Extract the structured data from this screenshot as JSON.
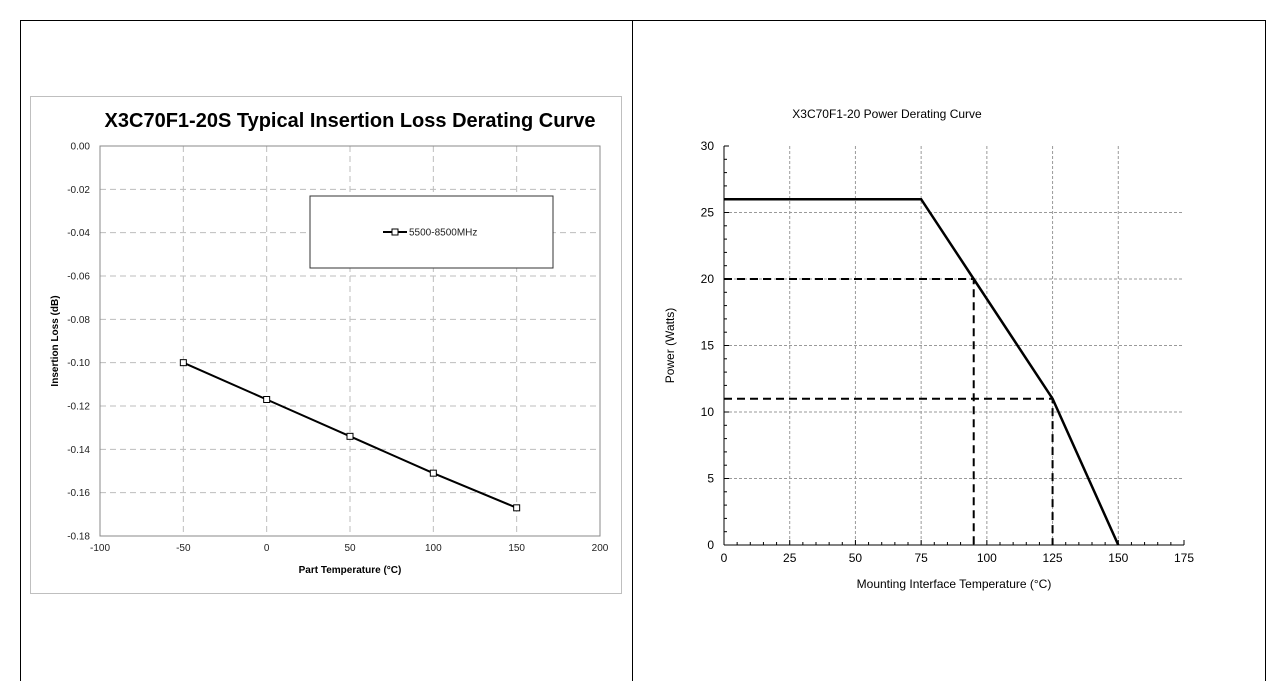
{
  "chart_data": [
    {
      "type": "line",
      "title": "X3C70F1-20S Typical Insertion Loss Derating Curve",
      "xlabel": "Part Temperature (°C)",
      "ylabel": "Insertion Loss (dB)",
      "xlim": [
        -100,
        200
      ],
      "ylim": [
        -0.18,
        0.0
      ],
      "xticks": [
        "-100",
        "-50",
        "0",
        "50",
        "100",
        "150",
        "200"
      ],
      "yticks": [
        "0.00",
        "-0.02",
        "-0.04",
        "-0.06",
        "-0.08",
        "-0.10",
        "-0.12",
        "-0.14",
        "-0.16",
        "-0.18"
      ],
      "grid": true,
      "legend_position": "top-right",
      "series": [
        {
          "name": "5500-8500MHz",
          "x": [
            -50,
            0,
            50,
            100,
            150
          ],
          "y": [
            -0.1,
            -0.117,
            -0.134,
            -0.151,
            -0.167
          ],
          "color": "#000000",
          "marker": "square"
        }
      ]
    },
    {
      "type": "line",
      "title": "X3C70F1-20 Power Derating Curve",
      "xlabel": "Mounting Interface Temperature (°C)",
      "ylabel": "Power (Watts)",
      "xlim": [
        0,
        175
      ],
      "ylim": [
        0,
        30
      ],
      "xticks": [
        "0",
        "25",
        "50",
        "75",
        "100",
        "125",
        "150",
        "175"
      ],
      "yticks": [
        "0",
        "5",
        "10",
        "15",
        "20",
        "25",
        "30"
      ],
      "grid": true,
      "series": [
        {
          "x": [
            0,
            75,
            95,
            125,
            150
          ],
          "y": [
            26,
            26,
            20,
            11,
            0
          ],
          "color": "#000000"
        }
      ],
      "reference_lines": [
        {
          "x": [
            0,
            95,
            95
          ],
          "y": [
            20,
            20,
            0
          ]
        },
        {
          "x": [
            0,
            125,
            125
          ],
          "y": [
            11,
            11,
            0
          ]
        }
      ]
    }
  ]
}
